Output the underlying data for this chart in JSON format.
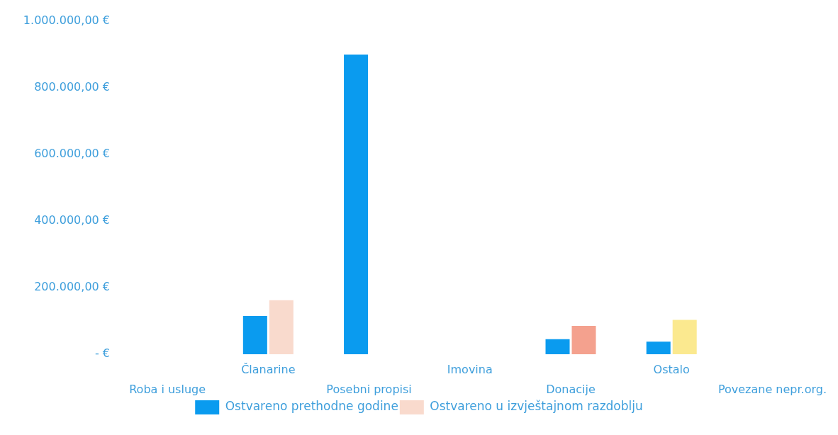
{
  "chart_data": {
    "type": "bar",
    "categories": [
      "Roba i usluge",
      "Članarine",
      "Posebni propisi",
      "Imovina",
      "Donacije",
      "Ostalo",
      "Povezane nepr.org."
    ],
    "series": [
      {
        "name": "Ostvareno prethodne godine",
        "color": "#0a9bef",
        "values": [
          0,
          115000,
          900000,
          0,
          45000,
          38000,
          0
        ]
      },
      {
        "name": "Ostvareno u izvještajnom razdoblju",
        "colors": [
          "#ffffff",
          "#f9dacd",
          "#ffffff",
          "#ffffff",
          "#f4a18e",
          "#fbe98f",
          "#ffffff"
        ],
        "values": [
          0,
          162000,
          0,
          0,
          85000,
          103000,
          0
        ]
      }
    ],
    "ylim": [
      0,
      1000000
    ],
    "yticks": [
      {
        "value": 0,
        "label": "- €"
      },
      {
        "value": 200000,
        "label": "200.000,00 €"
      },
      {
        "value": 400000,
        "label": "400.000,00 €"
      },
      {
        "value": 600000,
        "label": "600.000,00 €"
      },
      {
        "value": 800000,
        "label": "800.000,00 €"
      },
      {
        "value": 1000000,
        "label": "1.000.000,00 €"
      }
    ],
    "grid": false,
    "legend": "bottom"
  }
}
